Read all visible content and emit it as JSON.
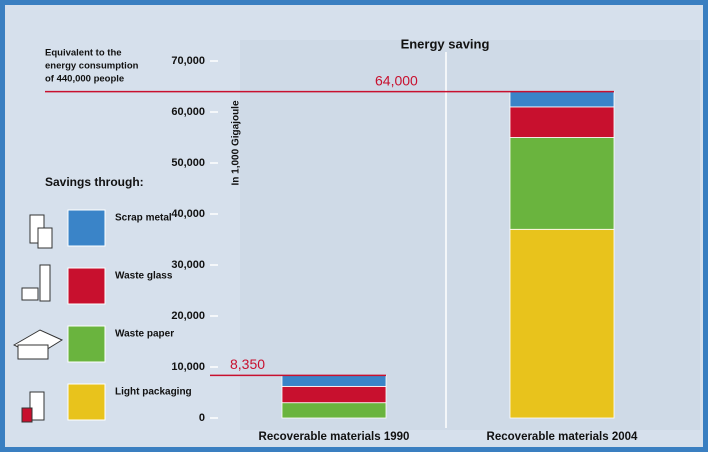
{
  "chart_data": {
    "type": "stacked_bar",
    "title": "Energy saving",
    "y_label": "In 1,000 Gigajoule",
    "annotation": [
      "Equivalent to the",
      "energy consumption",
      "of 440,000 people"
    ],
    "legend_title": "Savings through:",
    "categories": [
      "Recoverable materials 1990",
      "Recoverable materials 2004"
    ],
    "series": [
      {
        "name": "Light packaging",
        "color": "#e8c31c",
        "values": [
          0,
          37000
        ]
      },
      {
        "name": "Waste paper",
        "color": "#6ab43e",
        "values": [
          3000,
          18000
        ]
      },
      {
        "name": "Waste glass",
        "color": "#c8102e",
        "values": [
          3200,
          6000
        ]
      },
      {
        "name": "Scrap metal",
        "color": "#3a84c8",
        "values": [
          2150,
          3000
        ]
      }
    ],
    "totals": [
      8350,
      64000
    ],
    "total_labels": [
      "8,350",
      "64,000"
    ],
    "ylim": [
      0,
      70000
    ],
    "yticks": [
      0,
      {
        "value": 10000,
        "label": "10,000"
      },
      {
        "value": 20000,
        "label": "20,000"
      },
      {
        "value": 30000,
        "label": "30,000"
      },
      {
        "value": 40000,
        "label": "40,000"
      },
      {
        "value": 50000,
        "label": "50,000"
      },
      {
        "value": 60000,
        "label": "60,000"
      },
      {
        "value": 70000,
        "label": "70,000"
      }
    ],
    "grid": false
  }
}
